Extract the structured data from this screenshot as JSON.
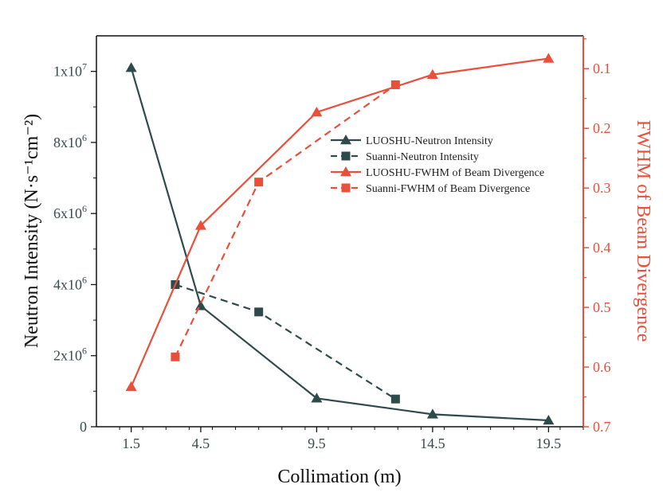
{
  "colors": {
    "left_series": "#2f4a4a",
    "right_series": "#e8503c",
    "axes_left": "#111111",
    "axes_right": "#e8503c"
  },
  "chart_data": {
    "type": "line",
    "xlabel": "Collimation (m)",
    "ylabel_left": "Neutron Intensity (N·s⁻¹cm⁻²)",
    "ylabel_right": "FWHM of Beam Divergence",
    "x_ticks": [
      "1.5",
      "4.5",
      "9.5",
      "14.5",
      "19.5"
    ],
    "y_left_ticks": [
      {
        "value": 0,
        "base": "0",
        "exp": ""
      },
      {
        "value": 2000000,
        "base": "2x10",
        "exp": "6"
      },
      {
        "value": 4000000,
        "base": "4x10",
        "exp": "6"
      },
      {
        "value": 6000000,
        "base": "6x10",
        "exp": "6"
      },
      {
        "value": 8000000,
        "base": "8x10",
        "exp": "6"
      },
      {
        "value": 10000000,
        "base": "1x10",
        "exp": "7"
      }
    ],
    "y_right_ticks": [
      "0.1",
      "0.2",
      "0.3",
      "0.4",
      "0.5",
      "0.6",
      "0.7"
    ],
    "y_right_inverted": true,
    "xlim": [
      0,
      21
    ],
    "ylim_left": [
      0,
      11000000
    ],
    "ylim_right": [
      0.7,
      0.045
    ],
    "series": [
      {
        "name": "LUOSHU-Neutron Intensity",
        "axis": "left",
        "marker": "triangle",
        "dash": false,
        "color": "#2f4a4a",
        "x": [
          1.5,
          4.5,
          9.5,
          14.5,
          19.5
        ],
        "y": [
          10100000,
          3400000,
          800000,
          350000,
          180000
        ]
      },
      {
        "name": "Suanni-Neutron Intensity",
        "axis": "left",
        "marker": "square",
        "dash": true,
        "color": "#2f4a4a",
        "x": [
          3.4,
          7.0,
          12.9
        ],
        "y": [
          4000000,
          3230000,
          780000
        ]
      },
      {
        "name": "LUOSHU-FWHM of Beam Divergence",
        "axis": "right",
        "marker": "triangle",
        "dash": false,
        "color": "#e8503c",
        "x": [
          1.5,
          4.5,
          9.5,
          14.5,
          19.5
        ],
        "y": [
          0.633,
          0.363,
          0.173,
          0.11,
          0.083
        ]
      },
      {
        "name": "Suanni-FWHM of Beam Divergence",
        "axis": "right",
        "marker": "square",
        "dash": true,
        "color": "#e8503c",
        "x": [
          3.4,
          7.0,
          12.9
        ],
        "y": [
          0.583,
          0.29,
          0.127
        ]
      }
    ],
    "legend_position": "center-right",
    "grid": false
  }
}
